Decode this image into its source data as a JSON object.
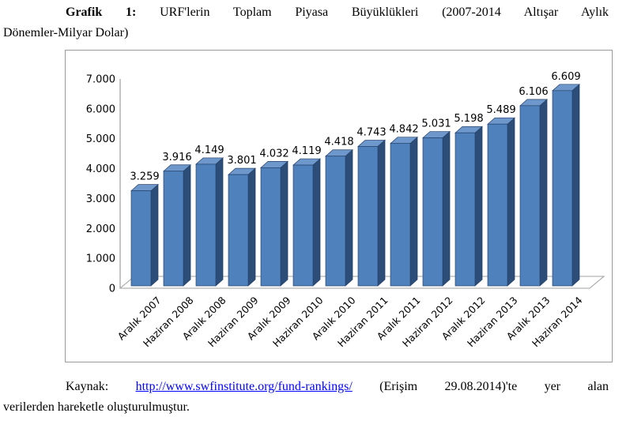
{
  "title": {
    "label": "Grafik 1:",
    "line1_rest": "URF'lerin Toplam Piyasa Büyüklükleri (2007-2014 Altışar Aylık",
    "line2": "Dönemler-Milyar Dolar)"
  },
  "chart_data": {
    "type": "bar",
    "title": "URF'lerin Toplam Piyasa Büyüklükleri (2007-2014 Altışar Aylık Dönemler-Milyar Dolar)",
    "categories": [
      "Aralık 2007",
      "Haziran 2008",
      "Aralık 2008",
      "Haziran 2009",
      "Aralık 2009",
      "Haziran 2010",
      "Aralık 2010",
      "Haziran 2011",
      "Aralık 2011",
      "Haziran 2012",
      "Aralık 2012",
      "Haziran 2013",
      "Aralık 2013",
      "Haziran 2014"
    ],
    "values": [
      3259,
      3916,
      4149,
      3801,
      4032,
      4119,
      4418,
      4743,
      4842,
      5031,
      5198,
      5489,
      6106,
      6609
    ],
    "value_labels": [
      "3.259",
      "3.916",
      "4.149",
      "3.801",
      "4.032",
      "4.119",
      "4.418",
      "4.743",
      "4.842",
      "5.031",
      "5.198",
      "5.489",
      "6.106",
      "6.609"
    ],
    "ytick_labels": [
      "7.000",
      "6.000",
      "5.000",
      "4.000",
      "3.000",
      "2.000",
      "1.000",
      "0"
    ],
    "ytick_values": [
      7000,
      6000,
      5000,
      4000,
      3000,
      2000,
      1000,
      0
    ],
    "xlabel": "",
    "ylabel": "",
    "ylim": [
      0,
      7000
    ],
    "grid": false,
    "legend": "none",
    "style_3d": true,
    "colors": {
      "bar_front": "#4F81BD",
      "bar_top": "#6E97CB",
      "bar_side": "#2C4D77",
      "bar_edge": "#24426B",
      "axis_line": "#A0A0A0",
      "frame_border": "#9B9B9B",
      "label_text": "#000000"
    }
  },
  "source": {
    "prefix": "Kaynak:",
    "link": "http://www.swfinstitute.org/fund-rankings/",
    "suffix": "(Erişim 29.08.2014)'te yer alan",
    "line2": "verilerden hareketle oluşturulmuştur."
  }
}
